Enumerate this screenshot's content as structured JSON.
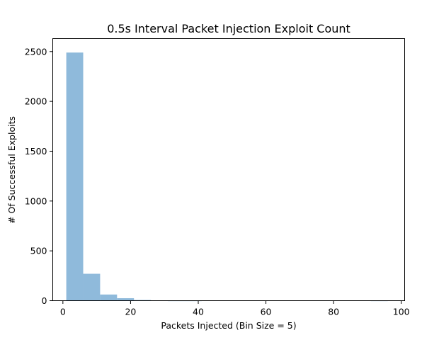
{
  "chart_data": {
    "type": "bar",
    "title": "0.5s Interval Packet Injection Exploit Count",
    "xlabel": "Packets Injected (Bin Size = 5)",
    "ylabel": "# Of Successful Exploits",
    "xlim": [
      -3,
      101
    ],
    "ylim": [
      0,
      2630
    ],
    "x_ticks": [
      0,
      20,
      40,
      60,
      80,
      100
    ],
    "x_tick_labels": [
      "0",
      "20",
      "40",
      "60",
      "80",
      "100"
    ],
    "y_ticks": [
      0,
      500,
      1000,
      1500,
      2000,
      2500
    ],
    "y_tick_labels": [
      "0",
      "500",
      "1000",
      "1500",
      "2000",
      "2500"
    ],
    "bar_color": "#8fbadb",
    "bins": [
      {
        "x0": 1,
        "x1": 6,
        "value": 2490
      },
      {
        "x0": 6,
        "x1": 11,
        "value": 270
      },
      {
        "x0": 11,
        "x1": 16,
        "value": 62
      },
      {
        "x0": 16,
        "x1": 21,
        "value": 25
      },
      {
        "x0": 21,
        "x1": 26,
        "value": 7
      },
      {
        "x0": 26,
        "x1": 31,
        "value": 3
      },
      {
        "x0": 31,
        "x1": 36,
        "value": 1
      },
      {
        "x0": 36,
        "x1": 41,
        "value": 1
      },
      {
        "x0": 41,
        "x1": 46,
        "value": 0
      },
      {
        "x0": 46,
        "x1": 51,
        "value": 0
      },
      {
        "x0": 51,
        "x1": 56,
        "value": 0
      },
      {
        "x0": 56,
        "x1": 61,
        "value": 0
      },
      {
        "x0": 61,
        "x1": 66,
        "value": 0
      },
      {
        "x0": 66,
        "x1": 71,
        "value": 0
      },
      {
        "x0": 71,
        "x1": 76,
        "value": 0
      },
      {
        "x0": 76,
        "x1": 81,
        "value": 0
      },
      {
        "x0": 81,
        "x1": 86,
        "value": 0
      },
      {
        "x0": 86,
        "x1": 91,
        "value": 0
      },
      {
        "x0": 91,
        "x1": 96,
        "value": 1
      }
    ],
    "grid": false,
    "legend": false
  }
}
